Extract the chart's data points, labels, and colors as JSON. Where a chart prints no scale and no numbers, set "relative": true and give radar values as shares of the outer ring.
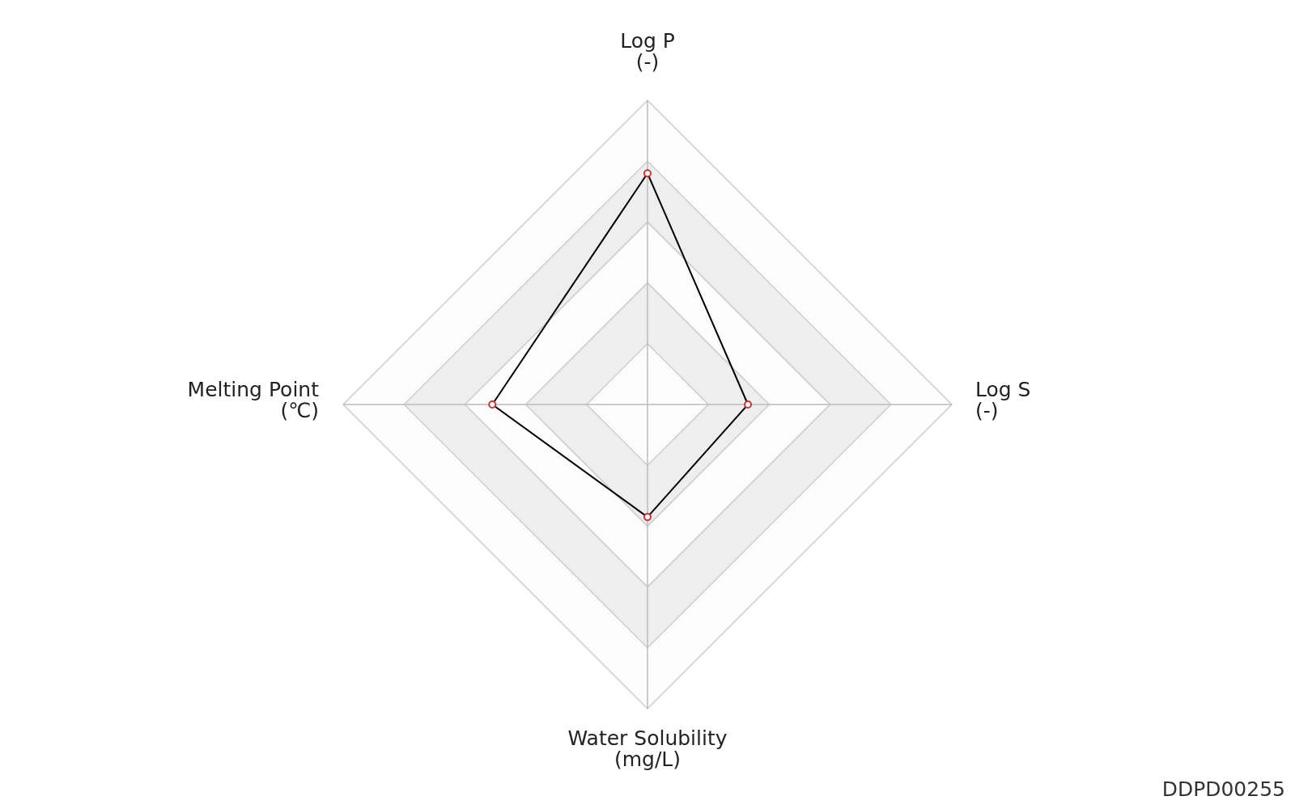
{
  "chart_data": {
    "type": "radar",
    "categories": [
      "Log P\n(-)",
      "Log S\n(-)",
      "Water Solubility\n(mg/L)",
      "Melting Point\n(℃)"
    ],
    "relative": true,
    "grid": true,
    "marker": "circle",
    "series": [
      {
        "color": "#000000",
        "colors": [
          "#cc3333",
          "#cc3333",
          "#cc3333",
          "#cc3333"
        ],
        "values": [
          0.76,
          0.33,
          0.37,
          0.51
        ]
      }
    ],
    "annotations": [
      "DDPD00255"
    ]
  }
}
